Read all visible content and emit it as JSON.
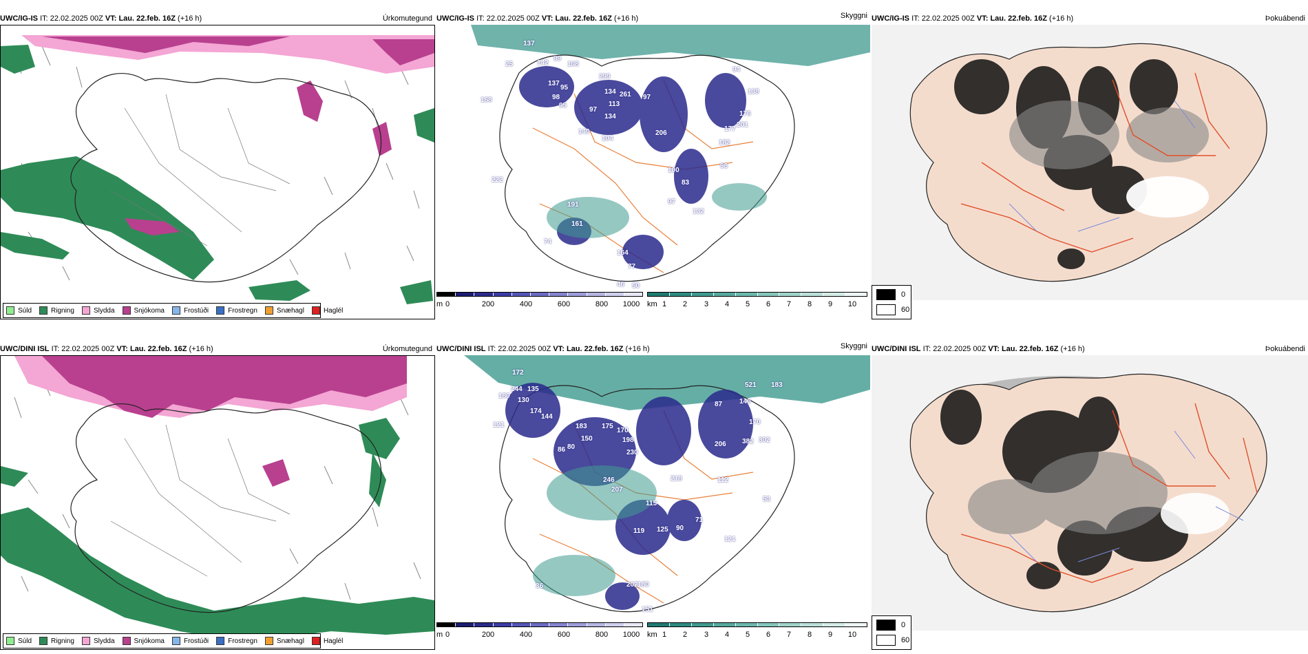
{
  "rows": [
    {
      "model": "UWC/IG-IS",
      "init_label": "IT:",
      "init_value": "22.02.2025 00Z",
      "valid_label": "VT:",
      "valid_value": "Lau. 22.feb. 16Z",
      "lead": "(+16 h)"
    },
    {
      "model": "UWC/DINI ISL",
      "init_label": "IT:",
      "init_value": "22.02.2025 00Z",
      "valid_label": "VT:",
      "valid_value": "Lau. 22.feb. 16Z",
      "lead": "(+16 h)"
    }
  ],
  "panel_titles": {
    "precip": "Úrkomutegund",
    "visibility": "Skyggni",
    "fog": "Þokuábendi"
  },
  "precip_legend": [
    {
      "label": "Súld",
      "color": "#90ee90"
    },
    {
      "label": "Rigning",
      "color": "#2e8b57"
    },
    {
      "label": "Slydda",
      "color": "#f4a6d4"
    },
    {
      "label": "Snjókoma",
      "color": "#b8408f"
    },
    {
      "label": "Frostúði",
      "color": "#87b7e8"
    },
    {
      "label": "Frostregn",
      "color": "#3a6fc4"
    },
    {
      "label": "Snæhagl",
      "color": "#f0a030"
    },
    {
      "label": "Haglél",
      "color": "#e02020"
    }
  ],
  "height_bar": {
    "unit": "m",
    "ticks": [
      "0",
      "200",
      "400",
      "600",
      "800",
      "1000"
    ],
    "colors": [
      "#000000",
      "#1c1c70",
      "#2a2a8c",
      "#3b3ba6",
      "#5454b8",
      "#6b6bc4",
      "#8484cf",
      "#9d9dd9",
      "#b6b6e3",
      "#cfcfee",
      "#e8e8f7"
    ]
  },
  "cloud_bar": {
    "unit": "km",
    "ticks": [
      "1",
      "2",
      "3",
      "4",
      "5",
      "6",
      "7",
      "8",
      "9",
      "10"
    ],
    "colors": [
      "#1f7a70",
      "#2e8a80",
      "#3f9a8f",
      "#56a99e",
      "#6db8ad",
      "#86c6bc",
      "#a0d3ca",
      "#bbe0d9",
      "#d5ece7",
      "#eef7f5"
    ]
  },
  "fog_legend": {
    "black_label": "0",
    "white_label": "60"
  },
  "station_numbers_top": [
    "137",
    "142",
    "99",
    "108",
    "25",
    "137",
    "95",
    "97",
    "98",
    "95",
    "104",
    "113",
    "299",
    "134",
    "261",
    "134",
    "140",
    "97",
    "206",
    "94",
    "138",
    "176",
    "201",
    "177",
    "182",
    "98",
    "168",
    "100",
    "83",
    "97",
    "132",
    "161",
    "74",
    "164",
    "77",
    "46",
    "50",
    "222",
    "191"
  ],
  "station_numbers_bottom": [
    "172",
    "180",
    "244",
    "135",
    "130",
    "174",
    "144",
    "121",
    "183",
    "150",
    "175",
    "170",
    "198",
    "230",
    "246",
    "207",
    "115",
    "125",
    "119",
    "90",
    "121",
    "218",
    "71",
    "36",
    "202",
    "180",
    "151",
    "521",
    "183",
    "140",
    "170",
    "382",
    "302",
    "206",
    "112",
    "53",
    "87",
    "86",
    "80"
  ]
}
